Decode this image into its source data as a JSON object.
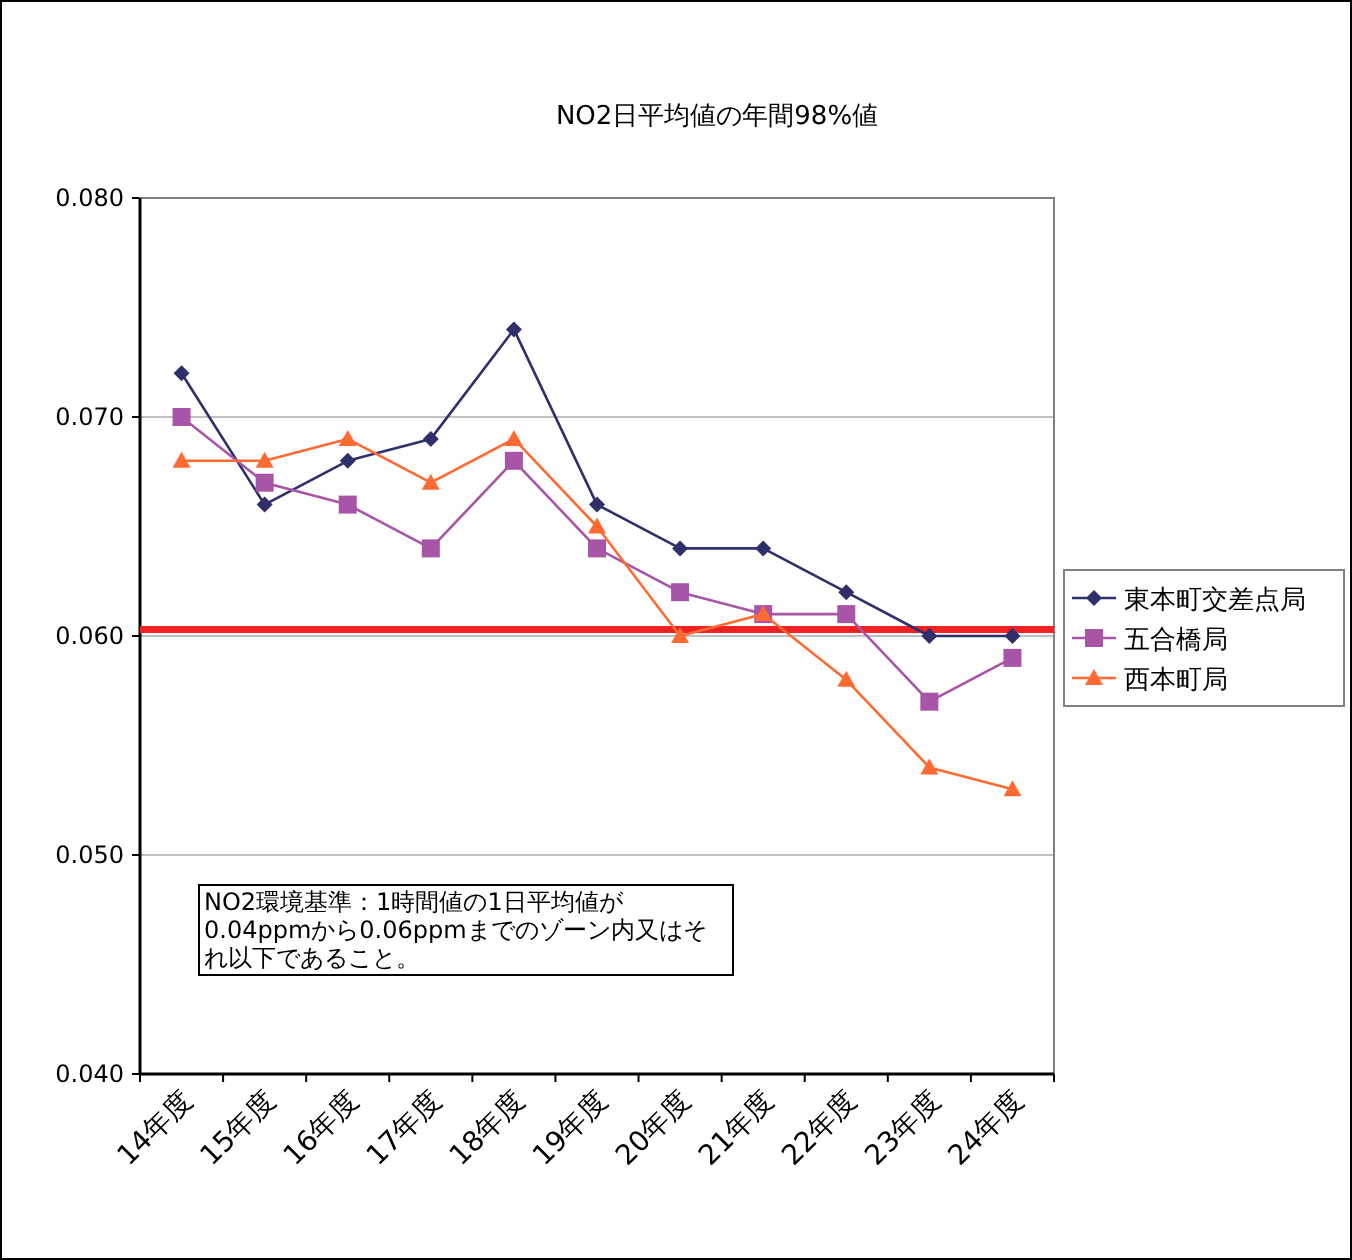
{
  "chart_data": {
    "type": "line",
    "title": "NO2日平均値の年間98%値",
    "categories": [
      "14年度",
      "15年度",
      "16年度",
      "17年度",
      "18年度",
      "19年度",
      "20年度",
      "21年度",
      "22年度",
      "23年度",
      "24年度"
    ],
    "series": [
      {
        "name": "東本町交差点局",
        "color": "#2f2f6b",
        "marker": "diamond",
        "values": [
          0.072,
          0.066,
          0.068,
          0.069,
          0.074,
          0.066,
          0.064,
          0.064,
          0.062,
          0.06,
          0.06
        ]
      },
      {
        "name": "五合橋局",
        "color": "#a855a8",
        "marker": "square",
        "values": [
          0.07,
          0.067,
          0.066,
          0.064,
          0.068,
          0.064,
          0.062,
          0.061,
          0.061,
          0.057,
          0.059
        ]
      },
      {
        "name": "西本町局",
        "color": "#ff6a33",
        "marker": "triangle",
        "values": [
          0.068,
          0.068,
          0.069,
          0.067,
          0.069,
          0.065,
          0.06,
          0.061,
          0.058,
          0.054,
          0.053
        ]
      }
    ],
    "ylim": [
      0.04,
      0.08
    ],
    "yticks": [
      {
        "value": 0.04,
        "label": "0.040"
      },
      {
        "value": 0.05,
        "label": "0.050"
      },
      {
        "value": 0.06,
        "label": "0.060"
      },
      {
        "value": 0.07,
        "label": "0.070"
      },
      {
        "value": 0.08,
        "label": "0.080"
      }
    ],
    "grid": "y",
    "legend": "right",
    "ref_lines": [
      {
        "axis": "y",
        "value": 0.0603,
        "color": "#ee2222"
      }
    ],
    "annotations": [
      "NO2環境基準：1時間値の1日平均値が0.04ppmから0.06ppmまでのゾーン内又はそれ以下であること。"
    ]
  }
}
